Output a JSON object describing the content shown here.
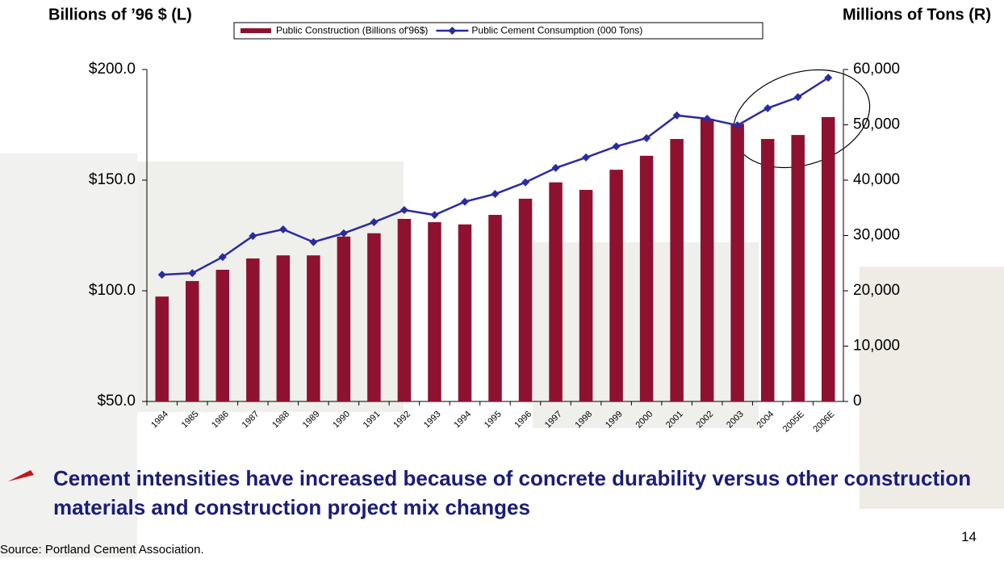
{
  "chart_data": {
    "type": "bar_line",
    "y_label": "Billions of ’96 $ (L)",
    "y2_label": "Millions of Tons (R)",
    "categories": [
      "1984",
      "1985",
      "1986",
      "1987",
      "1988",
      "1989",
      "1990",
      "1991",
      "1992",
      "1993",
      "1994",
      "1995",
      "1996",
      "1997",
      "1998",
      "1999",
      "2000",
      "2001",
      "2002",
      "2003",
      "2004",
      "2005E",
      "2006E"
    ],
    "series": [
      {
        "name": "Public Construction (Billions of'96$)",
        "type": "bar",
        "color": "#8e1230",
        "values": [
          97.4,
          104.4,
          109.5,
          114.6,
          116,
          116,
          124.5,
          126,
          132.5,
          131,
          130,
          134.3,
          141.6,
          149,
          145.6,
          154.7,
          161,
          168.6,
          177.7,
          175.5,
          168.6,
          170.4,
          178.5
        ]
      },
      {
        "name": "Public Cement Consumption (000 Tons)",
        "type": "line",
        "axis": "y2",
        "color": "#2b2ba0",
        "values": [
          22900,
          23200,
          26100,
          29900,
          31100,
          28800,
          30400,
          32400,
          34600,
          33700,
          36100,
          37500,
          39600,
          42200,
          44100,
          46100,
          47600,
          51700,
          51100,
          49900,
          53000,
          55000,
          58500
        ]
      }
    ],
    "ylim": [
      50,
      200
    ],
    "yticks": [
      {
        "value": 50,
        "label": "$50.0"
      },
      {
        "value": 100,
        "label": "$100.0"
      },
      {
        "value": 150,
        "label": "$150.0"
      },
      {
        "value": 200,
        "label": "$200.0"
      }
    ],
    "y2lim": [
      0,
      60000
    ],
    "y2ticks": [
      0,
      {
        "value": 10000,
        "label": "10,000"
      },
      {
        "value": 20000,
        "label": "20,000"
      },
      {
        "value": 30000,
        "label": "30,000"
      },
      {
        "value": 40000,
        "label": "40,000"
      },
      {
        "value": 50000,
        "label": "50,000"
      },
      {
        "value": 60000,
        "label": "60,000"
      }
    ]
  },
  "bullet": "Cement intensities have increased because of concrete durability versus other construction materials and construction project mix changes",
  "source": "Source:  Portland Cement Association.",
  "page_number": "14"
}
